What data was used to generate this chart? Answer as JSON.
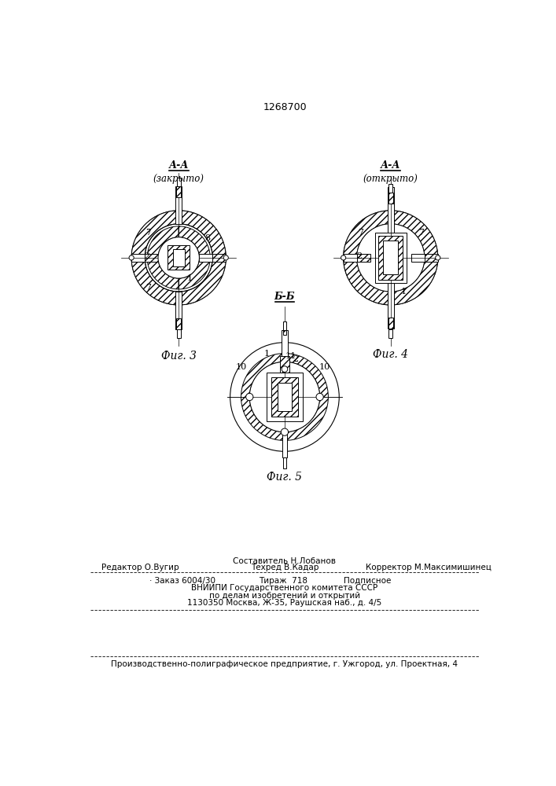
{
  "patent_number": "1268700",
  "fig3_aa": "А-А",
  "fig3_sub": "(закрыто)",
  "fig4_aa": "А-А",
  "fig4_sub": "(открыто)",
  "fig5_bb": "Б-Б",
  "fig3_caption": "Фиг. 3",
  "fig4_caption": "Фиг. 4",
  "fig5_caption": "Фиг. 5",
  "footer_editor": "Редактор О.Вугир",
  "footer_composer": "Составитель Н.Лобанов",
  "footer_corrector": "Корректор М.Максимишинец",
  "footer_techred": "Техред В.Кадар",
  "footer_order": "· Заказ 6004/30",
  "footer_tirazh": "Тираж  718",
  "footer_podp": "Подписное",
  "footer_vniip1": "ВНИИПИ Государственного комитета СССР",
  "footer_vniip2": "по делам изобретений и открытий",
  "footer_vniip3": "1130350 Москва, Ж-35, Раушская наб., д. 4/5",
  "footer_prod": "Производственно-полиграфическое предприятие, г. Ужгород, ул. Проектная, 4",
  "bg_color": "#ffffff",
  "lc": "#000000"
}
